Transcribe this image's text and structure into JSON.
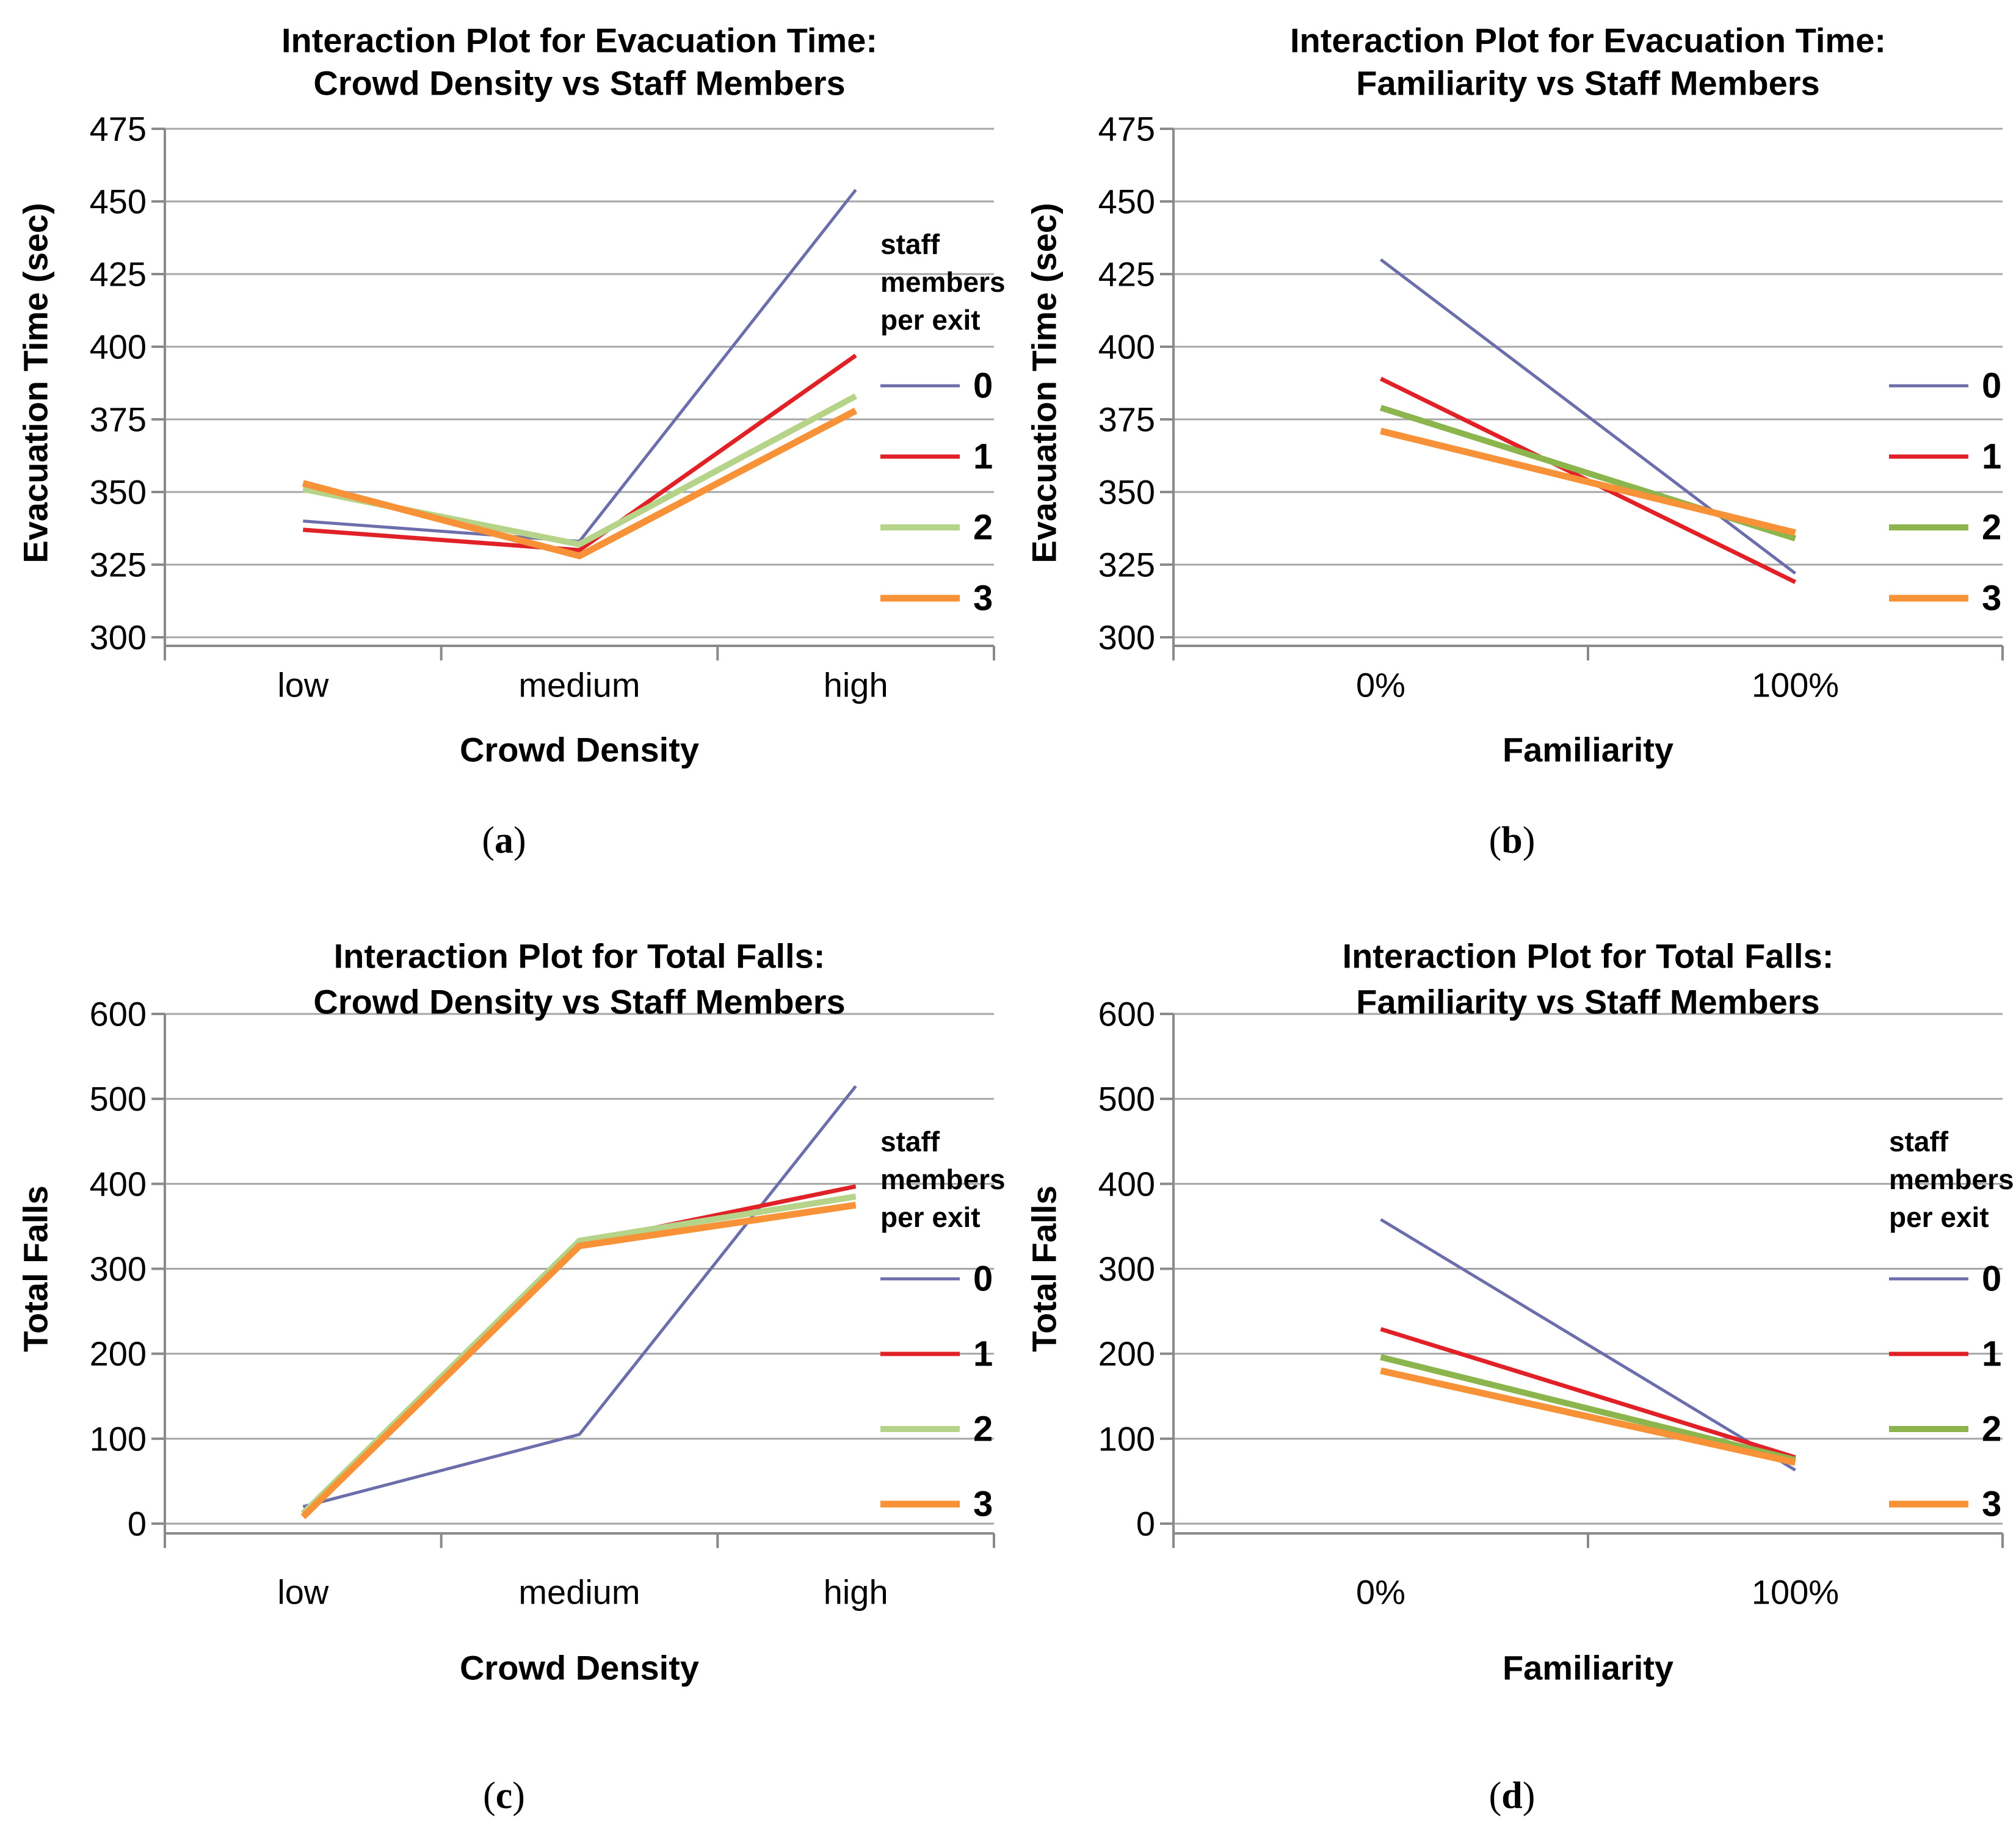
{
  "figure": {
    "captions": [
      {
        "open": "(",
        "letter": "a",
        "close": ")"
      },
      {
        "open": "(",
        "letter": "b",
        "close": ")"
      },
      {
        "open": "(",
        "letter": "c",
        "close": ")"
      },
      {
        "open": "(",
        "letter": "d",
        "close": ")"
      }
    ],
    "colors": {
      "staff0_purple": "#6C6DAB",
      "staff1_red": "#E02128",
      "staff2_light_green": "#B6D489",
      "staff2_dark_green": "#8CB54E",
      "staff3_orange": "#F79239",
      "gridline": "#A6A6A6",
      "axis": "#8A8A8A",
      "text": "#000000"
    }
  },
  "chart_data": [
    {
      "id": "a",
      "type": "line",
      "title_line1": "Interaction Plot for Evacuation Time:",
      "title_line2": "Crowd Density vs Staff Members",
      "ylabel": "Evacuation Time (sec)",
      "xlabel": "Crowd Density",
      "ylim": [
        300,
        475
      ],
      "ytick_step": 25,
      "ytick_labels": [
        "475",
        "450",
        "425",
        "400",
        "375",
        "350",
        "325",
        "300"
      ],
      "categories": [
        "low",
        "medium",
        "high"
      ],
      "grid": true,
      "legend_position": "right",
      "legend_title_lines": [
        "staff",
        "members",
        "per exit"
      ],
      "series": [
        {
          "name": "0",
          "color": "#6C6DAB",
          "stroke_width": 5,
          "values": [
            340,
            333,
            454
          ]
        },
        {
          "name": "1",
          "color": "#E02128",
          "stroke_width": 7,
          "values": [
            337,
            330,
            397
          ]
        },
        {
          "name": "2",
          "color": "#B6D489",
          "stroke_width": 10,
          "values": [
            351,
            332,
            383
          ]
        },
        {
          "name": "3",
          "color": "#F79239",
          "stroke_width": 11,
          "values": [
            353,
            328,
            378
          ]
        }
      ]
    },
    {
      "id": "b",
      "type": "line",
      "title_line1": "Interaction Plot for Evacuation Time:",
      "title_line2": "Familiarity vs Staff Members",
      "ylabel": "Evacuation Time (sec)",
      "xlabel": "Familiarity",
      "ylim": [
        300,
        475
      ],
      "ytick_step": 25,
      "ytick_labels": [
        "475",
        "450",
        "425",
        "400",
        "375",
        "350",
        "325",
        "300"
      ],
      "categories": [
        "0%",
        "100%"
      ],
      "grid": true,
      "legend_position": "right",
      "legend_title_lines": [],
      "series": [
        {
          "name": "0",
          "color": "#6C6DAB",
          "stroke_width": 5,
          "values": [
            430,
            322
          ]
        },
        {
          "name": "1",
          "color": "#E02128",
          "stroke_width": 7,
          "values": [
            389,
            319
          ]
        },
        {
          "name": "2",
          "color": "#8CB54E",
          "stroke_width": 10,
          "values": [
            379,
            334
          ]
        },
        {
          "name": "3",
          "color": "#F79239",
          "stroke_width": 11,
          "values": [
            371,
            336
          ]
        }
      ]
    },
    {
      "id": "c",
      "type": "line",
      "title_line1": "Interaction Plot for Total Falls:",
      "title_line2": "Crowd Density vs Staff Members",
      "ylabel": "Total Falls",
      "xlabel": "Crowd Density",
      "ylim": [
        0,
        600
      ],
      "ytick_step": 100,
      "ytick_labels": [
        "600",
        "500",
        "400",
        "300",
        "200",
        "100",
        "0"
      ],
      "categories": [
        "low",
        "medium",
        "high"
      ],
      "grid": true,
      "legend_position": "right",
      "legend_title_lines": [
        "staff",
        "members",
        "per exit"
      ],
      "series": [
        {
          "name": "0",
          "color": "#6C6DAB",
          "stroke_width": 5,
          "values": [
            20,
            105,
            515
          ]
        },
        {
          "name": "1",
          "color": "#E02128",
          "stroke_width": 7,
          "values": [
            13,
            330,
            397
          ]
        },
        {
          "name": "2",
          "color": "#B6D489",
          "stroke_width": 10,
          "values": [
            12,
            333,
            385
          ]
        },
        {
          "name": "3",
          "color": "#F79239",
          "stroke_width": 11,
          "values": [
            8,
            327,
            375
          ]
        }
      ]
    },
    {
      "id": "d",
      "type": "line",
      "title_line1": "Interaction Plot for Total Falls:",
      "title_line2": "Familiarity vs Staff Members",
      "ylabel": "Total Falls",
      "xlabel": "Familiarity",
      "ylim": [
        0,
        600
      ],
      "ytick_step": 100,
      "ytick_labels": [
        "600",
        "500",
        "400",
        "300",
        "200",
        "100",
        "0"
      ],
      "categories": [
        "0%",
        "100%"
      ],
      "grid": true,
      "legend_position": "right",
      "legend_title_lines": [
        "staff",
        "members",
        "per exit"
      ],
      "series": [
        {
          "name": "0",
          "color": "#6C6DAB",
          "stroke_width": 5,
          "values": [
            358,
            63
          ]
        },
        {
          "name": "1",
          "color": "#E02128",
          "stroke_width": 7,
          "values": [
            229,
            78
          ]
        },
        {
          "name": "2",
          "color": "#8CB54E",
          "stroke_width": 10,
          "values": [
            196,
            75
          ]
        },
        {
          "name": "3",
          "color": "#F79239",
          "stroke_width": 11,
          "values": [
            180,
            72
          ]
        }
      ]
    }
  ]
}
